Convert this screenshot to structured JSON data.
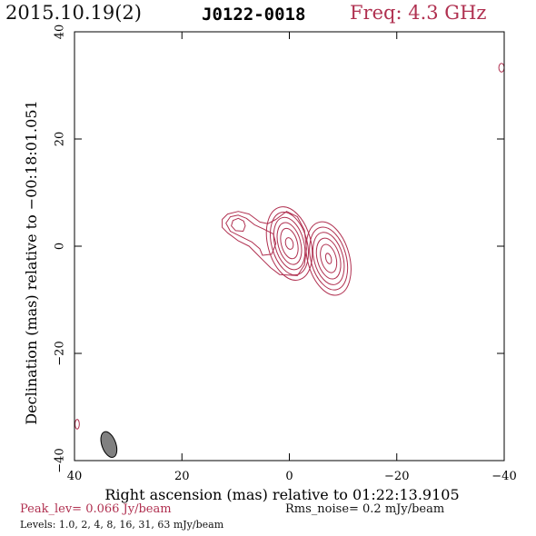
{
  "header": {
    "date": "2015.10.19(2)",
    "source": "J0122-0018",
    "freq": "Freq: 4.3 GHz"
  },
  "footer": {
    "peak": "Peak_lev=  0.066 Jy/beam",
    "rms": "Rms_noise=  0.2 mJy/beam",
    "levels": "Levels: 1.0,   2,   4,   8,  16,  31,  63 mJy/beam"
  },
  "colors": {
    "contour": "#b03050",
    "beam_fill": "#808080",
    "axes": "#000000"
  },
  "chart_data": {
    "type": "contour",
    "xlabel": "Right ascension (mas) relative to 01:22:13.9105",
    "ylabel": "Declination (mas) relative to −00:18:01.051",
    "xlim": [
      40,
      -40
    ],
    "ylim": [
      -40,
      40
    ],
    "xticks": [
      40,
      20,
      0,
      -20,
      -40
    ],
    "yticks": [
      -40,
      -20,
      0,
      20,
      40
    ],
    "xtick_labels": [
      "40",
      "20",
      "0",
      "−20",
      "−40"
    ],
    "ytick_labels": [
      "−40",
      "−20",
      "0",
      "20",
      "40"
    ],
    "contour_levels_mJy": [
      1.0,
      2,
      4,
      8,
      16,
      31,
      63
    ],
    "components": [
      {
        "name": "core",
        "x": 0,
        "y": 0.5,
        "contours": [
          {
            "rx": 4.0,
            "ry": 7.0,
            "rot": -15
          },
          {
            "rx": 3.3,
            "ry": 6.0,
            "rot": -15
          },
          {
            "rx": 2.7,
            "ry": 5.0,
            "rot": -15
          },
          {
            "rx": 2.1,
            "ry": 4.0,
            "rot": -15
          },
          {
            "rx": 1.5,
            "ry": 2.9,
            "rot": -15
          },
          {
            "rx": 0.7,
            "ry": 1.1,
            "rot": -15
          }
        ]
      },
      {
        "name": "secondary",
        "x": -7.3,
        "y": -2.3,
        "contours": [
          {
            "rx": 3.9,
            "ry": 7.0,
            "rot": -15
          },
          {
            "rx": 3.3,
            "ry": 6.0,
            "rot": -15
          },
          {
            "rx": 2.7,
            "ry": 5.0,
            "rot": -15
          },
          {
            "rx": 2.1,
            "ry": 3.9,
            "rot": -15
          },
          {
            "rx": 1.4,
            "ry": 2.7,
            "rot": -15
          },
          {
            "rx": 0.5,
            "ry": 1.0,
            "rot": -15
          }
        ]
      }
    ],
    "jet_outer": [
      [
        9.5,
        6.5
      ],
      [
        11.5,
        6.0
      ],
      [
        12.5,
        5.0
      ],
      [
        12.5,
        3.5
      ],
      [
        11.5,
        2.5
      ],
      [
        9.5,
        1.0
      ],
      [
        7.5,
        0.0
      ],
      [
        6.0,
        -1.5
      ],
      [
        5.0,
        -2.5
      ],
      [
        3.5,
        -4.0
      ],
      [
        1.8,
        -5.3
      ],
      [
        -1.5,
        -5.5
      ],
      [
        -2.8,
        -3.5
      ],
      [
        -3.2,
        -0.5
      ],
      [
        -2.8,
        3.0
      ],
      [
        -1.5,
        5.5
      ],
      [
        0.5,
        6.5
      ],
      [
        2.5,
        5.0
      ],
      [
        4.0,
        4.2
      ],
      [
        5.5,
        4.5
      ],
      [
        7.5,
        6.0
      ]
    ],
    "jet_inner1": [
      [
        9.5,
        5.8
      ],
      [
        11.0,
        5.5
      ],
      [
        11.8,
        4.3
      ],
      [
        11.0,
        2.8
      ],
      [
        9.0,
        1.8
      ],
      [
        7.0,
        0.8
      ],
      [
        5.5,
        -0.5
      ],
      [
        5.0,
        -1.7
      ],
      [
        3.3,
        -1.5
      ],
      [
        2.5,
        0.5
      ],
      [
        3.0,
        2.3
      ],
      [
        4.8,
        3.2
      ],
      [
        6.5,
        4.0
      ],
      [
        8.0,
        5.2
      ]
    ],
    "jet_inner2": [
      [
        9.5,
        5.2
      ],
      [
        10.5,
        4.8
      ],
      [
        10.8,
        3.8
      ],
      [
        10.0,
        2.9
      ],
      [
        8.6,
        2.8
      ],
      [
        8.2,
        3.8
      ],
      [
        8.5,
        4.7
      ]
    ],
    "edge_marks": [
      {
        "x": -39.5,
        "y": 33.3,
        "rx": 0.5,
        "ry": 0.8
      },
      {
        "x": 39.5,
        "y": -33.2,
        "rx": 0.4,
        "ry": 0.9
      }
    ],
    "beam": {
      "x": 33.6,
      "y": -37.0,
      "rx": 1.3,
      "ry": 2.5,
      "rot": -20
    }
  }
}
